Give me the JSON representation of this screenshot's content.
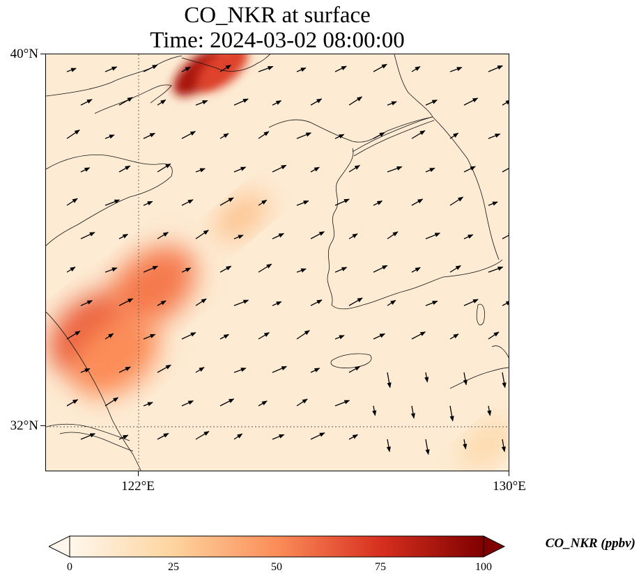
{
  "title": {
    "line1": "CO_NKR at surface",
    "line2": "Time: 2024-03-02 08:00:00"
  },
  "map": {
    "lat_range": [
      31,
      40
    ],
    "lon_range": [
      120,
      130
    ],
    "lat_ticks": [
      {
        "value": 40,
        "label": "40°N"
      },
      {
        "value": 32,
        "label": "32°N"
      }
    ],
    "lon_ticks": [
      {
        "value": 122,
        "label": "122°E"
      },
      {
        "value": 130,
        "label": "130°E"
      }
    ],
    "gridlines": "dotted at 122°E and 32°N",
    "field": "CO_NKR",
    "field_hotspots": [
      {
        "lon": 121.0,
        "lat": 34.0,
        "value": 62
      },
      {
        "lon": 122.3,
        "lat": 35.0,
        "value": 55
      },
      {
        "lon": 121.5,
        "lat": 33.5,
        "value": 50
      },
      {
        "lon": 123.3,
        "lat": 39.6,
        "value": 88
      },
      {
        "lon": 123.8,
        "lat": 39.7,
        "value": 70
      },
      {
        "lon": 124.2,
        "lat": 36.5,
        "value": 32
      },
      {
        "lon": 129.5,
        "lat": 31.6,
        "value": 22
      }
    ],
    "wind_vectors": "arrows, predominantly west-southwest to east-northeast"
  },
  "colorbar": {
    "colormap": "OrRd",
    "ticks": [
      "0",
      "25",
      "50",
      "75",
      "100"
    ],
    "range": [
      0,
      100
    ],
    "extend": "both",
    "label": "CO_NKR (ppbv)",
    "colors": [
      "#fff7ec",
      "#fdd49e",
      "#fc8d59",
      "#d7301f",
      "#7f0000"
    ]
  }
}
